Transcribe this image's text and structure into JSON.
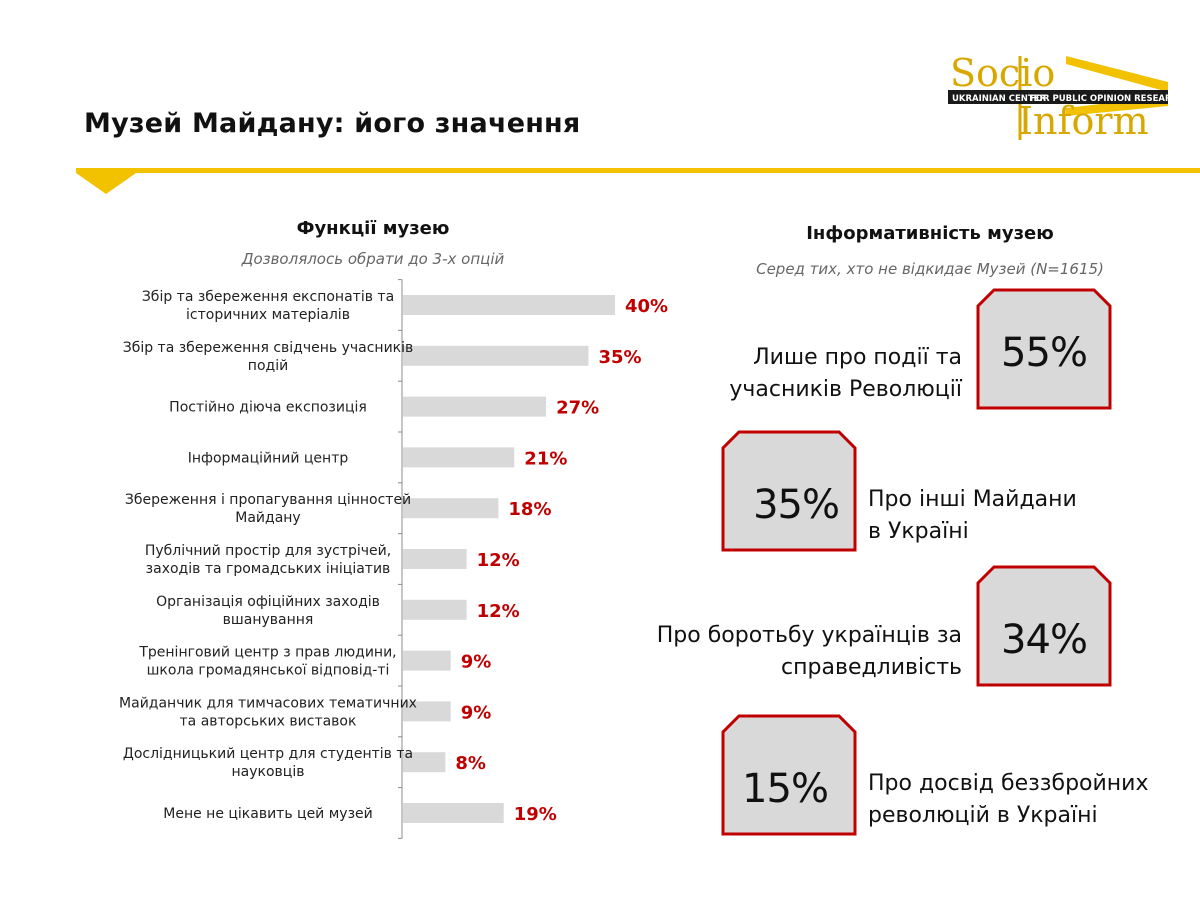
{
  "page": {
    "title": "Музей Майдану: його значення"
  },
  "logo": {
    "word_top": "Socio",
    "word_bottom": "Inform",
    "band_left": "UKRAINIAN CENTER",
    "band_right": "FOR PUBLIC OPINION RESEARCH"
  },
  "colors": {
    "accent_yellow": "#f2c100",
    "bar_gray": "#d9d9d9",
    "value_red": "#c00000",
    "box_border_red": "#c00000",
    "box_fill_gray": "#d9d9d9"
  },
  "left_panel": {
    "heading": "Функції музею",
    "subheading": "Дозволялось обрати до 3-х опцій"
  },
  "chart_data": {
    "type": "bar",
    "orientation": "horizontal",
    "categories": [
      [
        "Збір та збереження експонатів та",
        "історичних матеріалів"
      ],
      [
        "Збір та збереження свідчень учасників",
        "подій"
      ],
      [
        "Постійно діюча експозиція"
      ],
      [
        "Інформаційний центр"
      ],
      [
        "Збереження і пропагування цінностей",
        "Майдану"
      ],
      [
        "Публічний простір для зустрічей,",
        "заходів та громадських ініціатив"
      ],
      [
        "Організація офіційних заходів",
        "вшанування"
      ],
      [
        "Тренінговий центр з прав людини,",
        "школа громадянської відповід-ті"
      ],
      [
        "Майданчик для тимчасових тематичних",
        "та авторських виставок"
      ],
      [
        "Дослідницький центр для студентів та",
        "науковців"
      ],
      [
        "Мене не цікавить цей музей"
      ]
    ],
    "values": [
      40,
      35,
      27,
      21,
      18,
      12,
      12,
      9,
      9,
      8,
      19
    ],
    "value_labels": [
      "40%",
      "35%",
      "27%",
      "21%",
      "18%",
      "12%",
      "12%",
      "9%",
      "9%",
      "8%",
      "19%"
    ],
    "unit": "%",
    "grid": false,
    "legend": "none"
  },
  "right_panel": {
    "heading": "Інформативність музею",
    "subheading": "Серед тих, хто не відкидає Музей (N=1615)",
    "items": [
      {
        "value": "55%",
        "lines": [
          "Лише про події та",
          "учасників Революції"
        ]
      },
      {
        "value": "35%",
        "lines": [
          "Про інші Майдани",
          "в Україні"
        ]
      },
      {
        "value": "34%",
        "lines": [
          "Про боротьбу українців за",
          "справедливість"
        ]
      },
      {
        "value": "15%",
        "lines": [
          "Про досвід беззбройних",
          "революцій в Україні"
        ]
      }
    ]
  }
}
